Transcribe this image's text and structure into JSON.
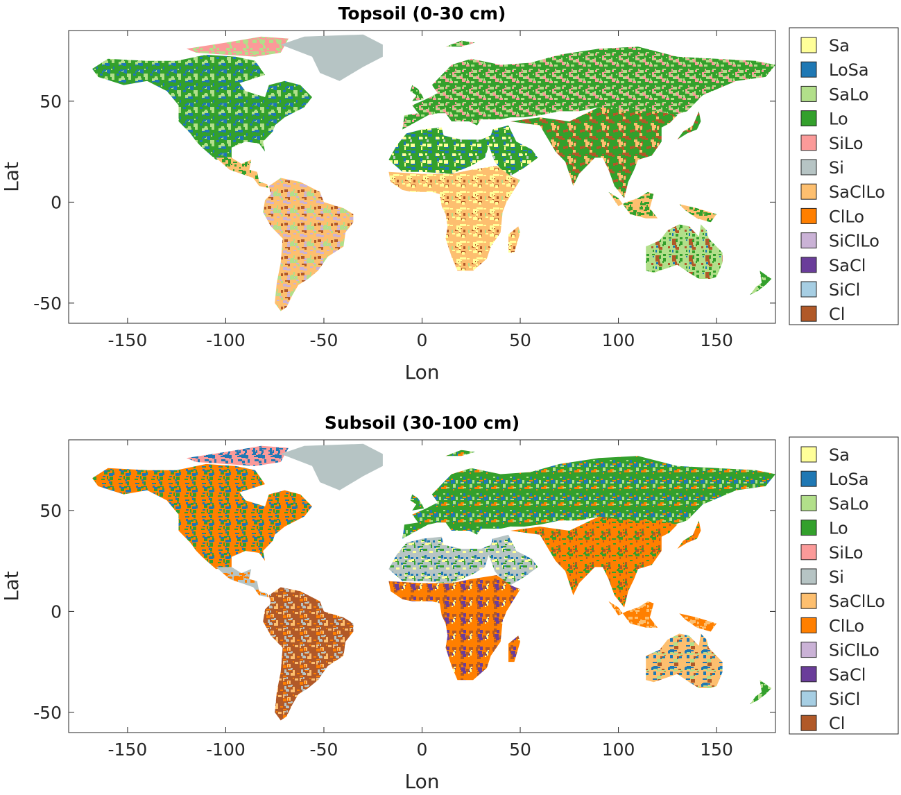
{
  "palette": {
    "Sa": "#ffff99",
    "LoSa": "#1f78b4",
    "SaLo": "#b2df8a",
    "Lo": "#33a02c",
    "SiLo": "#fb9a99",
    "Si": "#b6c4c4",
    "SaClLo": "#fdbf6f",
    "ClLo": "#ff7f00",
    "SiClLo": "#cab2d6",
    "SaCl": "#6a3d9a",
    "SiCl": "#a6cee3",
    "Cl": "#b15928"
  },
  "maps": [
    {
      "title": "Topsoil (0-30 cm)",
      "xlabel": "Lon",
      "ylabel": "Lat",
      "xlim": [
        -180,
        180
      ],
      "ylim": [
        -60,
        85
      ],
      "xticks": [
        -150,
        -100,
        -50,
        0,
        50,
        100,
        150
      ],
      "yticks": [
        50,
        0,
        -50
      ],
      "legend": [
        "Sa",
        "LoSa",
        "SaLo",
        "Lo",
        "SiLo",
        "Si",
        "SaClLo",
        "ClLo",
        "SiClLo",
        "SaCl",
        "SiCl",
        "Cl"
      ],
      "regions": [
        {
          "name": "North America",
          "dominant": [
            "Lo",
            "SaLo",
            "LoSa"
          ]
        },
        {
          "name": "Canadian Arctic",
          "dominant": [
            "SiLo",
            "SaLo"
          ]
        },
        {
          "name": "Greenland",
          "dominant": [
            "Si"
          ]
        },
        {
          "name": "Central America",
          "dominant": [
            "SaClLo",
            "Lo"
          ]
        },
        {
          "name": "South America",
          "dominant": [
            "SaClLo",
            "Cl",
            "SiClLo",
            "SaLo"
          ]
        },
        {
          "name": "Europe and Russia",
          "dominant": [
            "Lo",
            "SaLo",
            "SiLo"
          ]
        },
        {
          "name": "North Africa and Middle East",
          "dominant": [
            "Lo",
            "Sa",
            "LoSa",
            "Si"
          ]
        },
        {
          "name": "Sub-Saharan Africa",
          "dominant": [
            "SaClLo",
            "Cl",
            "Sa",
            "SaLo"
          ]
        },
        {
          "name": "South and East Asia",
          "dominant": [
            "Lo",
            "SaClLo",
            "Cl"
          ]
        },
        {
          "name": "Southeast Asian Islands",
          "dominant": [
            "SaClLo",
            "Lo"
          ]
        },
        {
          "name": "Australia",
          "dominant": [
            "SaLo",
            "LoSa",
            "Lo",
            "Cl"
          ]
        },
        {
          "name": "New Zealand",
          "dominant": [
            "Lo",
            "SaLo"
          ]
        }
      ]
    },
    {
      "title": "Subsoil (30-100 cm)",
      "xlabel": "Lon",
      "ylabel": "Lat",
      "xlim": [
        -180,
        180
      ],
      "ylim": [
        -60,
        85
      ],
      "xticks": [
        -150,
        -100,
        -50,
        0,
        50,
        100,
        150
      ],
      "yticks": [
        50,
        0,
        -50
      ],
      "legend": [
        "Sa",
        "LoSa",
        "SaLo",
        "Lo",
        "SiLo",
        "Si",
        "SaClLo",
        "ClLo",
        "SiClLo",
        "SaCl",
        "SiCl",
        "Cl"
      ],
      "regions": [
        {
          "name": "North America",
          "dominant": [
            "ClLo",
            "Lo",
            "LoSa"
          ]
        },
        {
          "name": "Canadian Arctic",
          "dominant": [
            "SiLo",
            "LoSa"
          ]
        },
        {
          "name": "Greenland",
          "dominant": [
            "Si"
          ]
        },
        {
          "name": "Central America",
          "dominant": [
            "Si",
            "ClLo"
          ]
        },
        {
          "name": "South America",
          "dominant": [
            "Cl",
            "Si",
            "SaClLo",
            "ClLo"
          ]
        },
        {
          "name": "Europe and Russia",
          "dominant": [
            "Lo",
            "SaLo",
            "ClLo",
            "LoSa"
          ]
        },
        {
          "name": "North Africa and Middle East",
          "dominant": [
            "Si",
            "Lo",
            "Sa",
            "LoSa"
          ]
        },
        {
          "name": "Sub-Saharan Africa",
          "dominant": [
            "ClLo",
            "SaCl",
            "Sa",
            "Cl"
          ]
        },
        {
          "name": "South and East Asia",
          "dominant": [
            "ClLo",
            "Cl",
            "Lo"
          ]
        },
        {
          "name": "Southeast Asian Islands",
          "dominant": [
            "ClLo",
            "SaClLo"
          ]
        },
        {
          "name": "Australia",
          "dominant": [
            "SaClLo",
            "Cl",
            "LoSa",
            "SaLo"
          ]
        },
        {
          "name": "New Zealand",
          "dominant": [
            "Lo",
            "SaLo"
          ]
        }
      ]
    }
  ]
}
